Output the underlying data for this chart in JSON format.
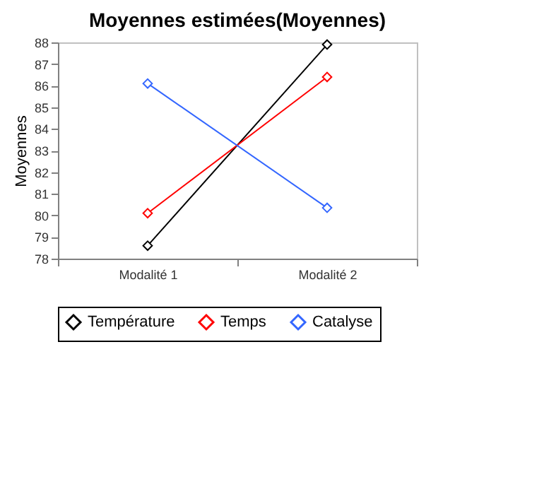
{
  "chart_data": {
    "type": "line",
    "title": "Moyennes estimées(Moyennes)",
    "ylabel": "Moyennes",
    "categories": [
      "Modalité 1",
      "Modalité 2"
    ],
    "series": [
      {
        "name": "Température",
        "color": "#000000",
        "values": [
          78.6,
          87.9
        ]
      },
      {
        "name": "Temps",
        "color": "#ff0000",
        "values": [
          80.1,
          86.4
        ]
      },
      {
        "name": "Catalyse",
        "color": "#3366ff",
        "values": [
          86.1,
          80.35
        ]
      }
    ],
    "ylim": [
      78,
      88
    ],
    "yticks": [
      78,
      79,
      80,
      81,
      82,
      83,
      84,
      85,
      86,
      87,
      88
    ],
    "grid": false,
    "legend": "bottom",
    "marker": "diamond",
    "line_style": "solid"
  }
}
